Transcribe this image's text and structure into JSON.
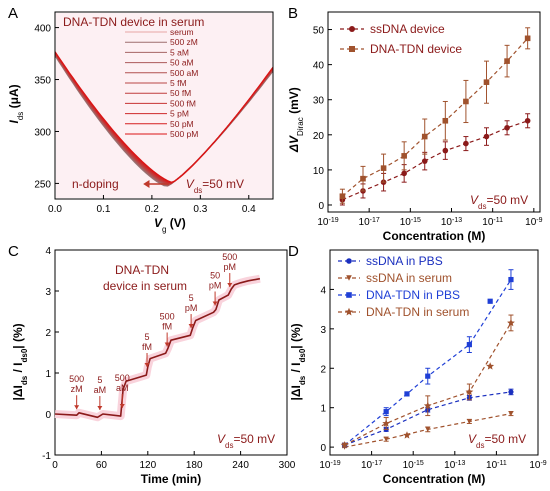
{
  "colors": {
    "red_dark": "#8b1a1a",
    "brown": "#a0522d",
    "blue": "#1f3fd6",
    "navy": "#1a2fbf",
    "pink_bg": "#f9d3dc",
    "legend_red": "#c0392b",
    "axis": "#000000"
  },
  "chart_data": [
    {
      "panel": "A",
      "type": "line",
      "title": "DNA-TDN device  in serum",
      "xlabel_main": "V",
      "xlabel_sub": "g",
      "xlabel_unit": " (V)",
      "ylabel_main": "I",
      "ylabel_sub": "ds",
      "ylabel_unit": " (μA)",
      "xlim": [
        0.0,
        0.45
      ],
      "ylim": [
        235,
        415
      ],
      "xticks": [
        "0.0",
        "0.1",
        "0.2",
        "0.3",
        "0.4"
      ],
      "yticks": [
        "250",
        "300",
        "350",
        "400"
      ],
      "legend": [
        "serum",
        "500 zM",
        "5 aM",
        "50 aM",
        "500 aM",
        "5 fM",
        "50 fM",
        "500 fM",
        "5 pM",
        "50 pM",
        "500 pM"
      ],
      "dirac_x": [
        0.2305,
        0.2315,
        0.2325,
        0.2335,
        0.2345,
        0.2355,
        0.2365,
        0.238,
        0.2395,
        0.241,
        0.2425
      ],
      "curve": {
        "x_start": 0.0,
        "x_end": 0.45,
        "y_left": 373,
        "y_min": 247,
        "y_right": 358
      },
      "arrow_label": "n-doping",
      "vds_main": "V",
      "vds_sub": "ds",
      "vds_value": "=50 mV"
    },
    {
      "panel": "B",
      "type": "line",
      "xlabel": "Concentration (M)",
      "ylabel_main": "ΔV",
      "ylabel_sub": "Dirac",
      "ylabel_unit": " (mV)",
      "xscale": "log",
      "xlim_exp": [
        -19,
        -8.7
      ],
      "ylim": [
        -2,
        55
      ],
      "xtick_exps": [
        "-19",
        "-17",
        "-15",
        "-13",
        "-11",
        "-9"
      ],
      "yticks": [
        "0",
        "10",
        "20",
        "30",
        "40",
        "50"
      ],
      "x_exp": [
        -18.3,
        -17.3,
        -16.3,
        -15.3,
        -14.3,
        -13.3,
        -12.3,
        -11.3,
        -10.3,
        -9.3
      ],
      "series": [
        {
          "name": "ssDNA device",
          "color_key": "red_dark",
          "marker": "circle",
          "values": [
            1.5,
            4.0,
            6.5,
            9.0,
            12.5,
            15.5,
            17.5,
            19.5,
            22.0,
            24.0
          ],
          "errors": [
            1.5,
            2.0,
            2.5,
            2.5,
            2.5,
            2.5,
            2.0,
            2.5,
            2.0,
            2.0
          ]
        },
        {
          "name": "DNA-TDN device",
          "color_key": "brown",
          "marker": "square",
          "values": [
            2.5,
            7.5,
            10.5,
            14.0,
            19.5,
            24.0,
            29.5,
            35.0,
            41.0,
            47.5
          ],
          "errors": [
            2.0,
            3.5,
            4.0,
            4.0,
            5.0,
            5.5,
            6.0,
            6.0,
            4.5,
            3.0
          ]
        }
      ],
      "vds_main": "V",
      "vds_sub": "ds",
      "vds_value": "=50 mV"
    },
    {
      "panel": "C",
      "type": "line",
      "title_line1": "DNA-TDN",
      "title_line2": "device in serum",
      "xlabel": "Time (min)",
      "ylabel": "|ΔI",
      "ylabel_sub1": "ds",
      "ylabel_mid": " / I",
      "ylabel_sub2": "ds0",
      "ylabel_unit": "| (%)",
      "xlim": [
        0,
        300
      ],
      "ylim": [
        -1,
        4
      ],
      "xticks": [
        "0",
        "60",
        "120",
        "180",
        "240",
        "300"
      ],
      "yticks": [
        "-1",
        "0",
        "1",
        "2",
        "3",
        "4"
      ],
      "trace": [
        [
          0,
          0.0
        ],
        [
          28,
          -0.03
        ],
        [
          31,
          0.03
        ],
        [
          55,
          -0.08
        ],
        [
          62,
          0.0
        ],
        [
          85,
          -0.05
        ],
        [
          88,
          0.6
        ],
        [
          92,
          0.8
        ],
        [
          118,
          0.95
        ],
        [
          120,
          1.15
        ],
        [
          123,
          1.35
        ],
        [
          143,
          1.48
        ],
        [
          146,
          1.6
        ],
        [
          150,
          1.8
        ],
        [
          175,
          1.92
        ],
        [
          178,
          2.1
        ],
        [
          182,
          2.28
        ],
        [
          205,
          2.48
        ],
        [
          208,
          2.55
        ],
        [
          212,
          2.78
        ],
        [
          224,
          2.9
        ],
        [
          228,
          3.05
        ],
        [
          232,
          3.15
        ],
        [
          240,
          3.2
        ],
        [
          250,
          3.25
        ],
        [
          265,
          3.3
        ]
      ],
      "annotations": [
        {
          "text": [
            "500",
            "zM"
          ],
          "x": 28,
          "y": -0.03
        },
        {
          "text": [
            "5",
            "aM"
          ],
          "x": 58,
          "y": -0.05
        },
        {
          "text": [
            "500",
            "aM"
          ],
          "x": 87,
          "y": 0.0
        },
        {
          "text": [
            "5",
            "fM"
          ],
          "x": 119,
          "y": 1.0
        },
        {
          "text": [
            "500",
            "fM"
          ],
          "x": 145,
          "y": 1.5
        },
        {
          "text": [
            "5",
            "pM"
          ],
          "x": 176,
          "y": 1.95
        },
        {
          "text": [
            "50",
            "pM"
          ],
          "x": 207,
          "y": 2.5
        },
        {
          "text": [
            "500",
            "pM"
          ],
          "x": 226,
          "y": 2.95
        }
      ],
      "vds_main": "V",
      "vds_sub": "ds",
      "vds_value": "=50 mV"
    },
    {
      "panel": "D",
      "type": "line",
      "xlabel": "Concentration (M)",
      "ylabel": "|ΔI",
      "ylabel_sub1": "ds",
      "ylabel_mid": " / I",
      "ylabel_sub2": "ds0",
      "ylabel_unit": "| (%)",
      "xscale": "log",
      "xlim_exp": [
        -19,
        -9.0
      ],
      "ylim": [
        -0.2,
        5.0
      ],
      "xtick_exps": [
        "-19",
        "-17",
        "-15",
        "-13",
        "-11",
        "-9"
      ],
      "yticks": [
        "0",
        "1",
        "2",
        "3",
        "4"
      ],
      "x_exp": [
        -18.3,
        -16.3,
        -14.3,
        -12.3,
        -10.3
      ],
      "series": [
        {
          "name": "ssDNA in PBS",
          "color_key": "navy",
          "marker": "circle",
          "values": [
            0.05,
            0.45,
            0.95,
            1.25,
            1.4
          ],
          "errors": [
            0.03,
            0.05,
            0.06,
            0.06,
            0.07
          ]
        },
        {
          "name": "ssDNA in serum",
          "color_key": "brown",
          "marker": "triangle-down",
          "values": [
            0.0,
            0.2,
            0.45,
            0.65,
            0.85
          ],
          "errors": [
            0.03,
            0.05,
            0.06,
            0.05,
            0.05
          ]
        },
        {
          "name": "DNA-TDN in PBS",
          "color_key": "blue",
          "marker": "square",
          "values": [
            0.05,
            0.9,
            1.8,
            2.6,
            4.25
          ],
          "errors": [
            0.05,
            0.1,
            0.2,
            0.2,
            0.25
          ]
        },
        {
          "name": "DNA-TDN in serum",
          "color_key": "brown",
          "marker": "star",
          "values": [
            0.05,
            0.6,
            1.05,
            1.4,
            3.15
          ],
          "errors": [
            0.05,
            0.15,
            0.25,
            0.2,
            0.2
          ]
        }
      ],
      "extra_points_blue": [
        [
          -15.3,
          1.35
        ],
        [
          -11.3,
          3.7
        ]
      ],
      "extra_points_brown": [
        [
          -15.3,
          0.3
        ],
        [
          -11.3,
          2.05
        ]
      ],
      "vds_main": "V",
      "vds_sub": "ds",
      "vds_value": "=50 mV"
    }
  ],
  "panel_letters": [
    "A",
    "B",
    "C",
    "D"
  ]
}
